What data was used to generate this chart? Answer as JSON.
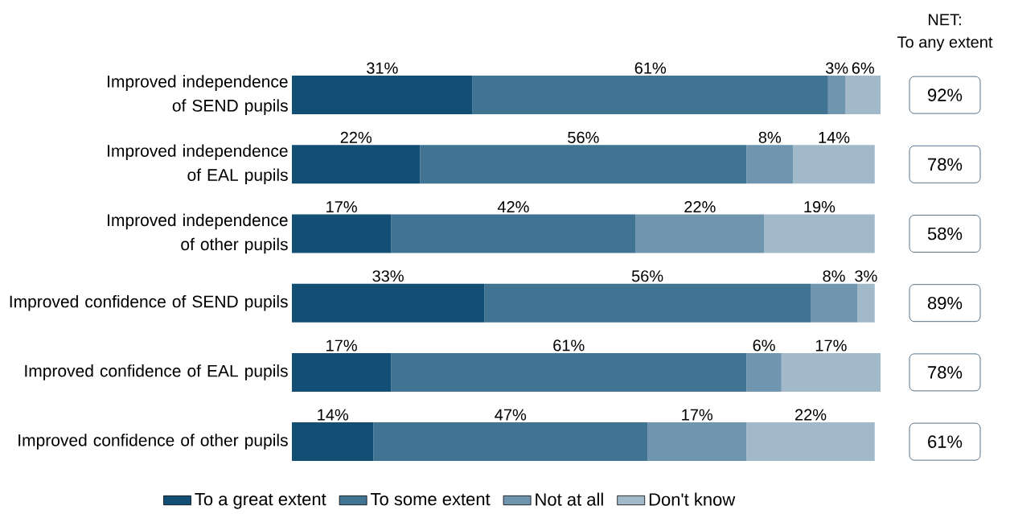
{
  "chart_data": {
    "type": "bar",
    "orientation": "horizontal",
    "stacked": true,
    "legend": "bottom",
    "categories": [
      "Improved independence of SEND pupils",
      "Improved independence of EAL pupils",
      "Improved independence of other pupils",
      "Improved confidence of SEND pupils",
      "Improved confidence of EAL pupils",
      "Improved confidence of other pupils"
    ],
    "series": [
      {
        "name": "To a great extent",
        "color": "#134f75",
        "values": [
          31,
          22,
          17,
          33,
          17,
          14
        ],
        "value_labels": [
          "31%",
          "22%",
          "17%",
          "33%",
          "17%",
          "14%"
        ]
      },
      {
        "name": "To some extent",
        "color": "#417393",
        "values": [
          61,
          56,
          42,
          56,
          61,
          47
        ],
        "value_labels": [
          "61%",
          "56%",
          "42%",
          "56%",
          "61%",
          "47%"
        ]
      },
      {
        "name": "Not at all",
        "color": "#7095ae",
        "values": [
          3,
          8,
          22,
          8,
          6,
          17
        ],
        "value_labels": [
          "3%",
          "8%",
          "22%",
          "8%",
          "6%",
          "17%"
        ]
      },
      {
        "name": "Don't know",
        "color": "#a2b9ca",
        "values": [
          6,
          14,
          19,
          3,
          17,
          22
        ],
        "value_labels": [
          "6%",
          "14%",
          "19%",
          "3%",
          "17%",
          "22%"
        ]
      }
    ],
    "annotations": [
      "NET:",
      "To any extent",
      "92%",
      "78%",
      "58%",
      "89%",
      "78%",
      "61%"
    ]
  }
}
